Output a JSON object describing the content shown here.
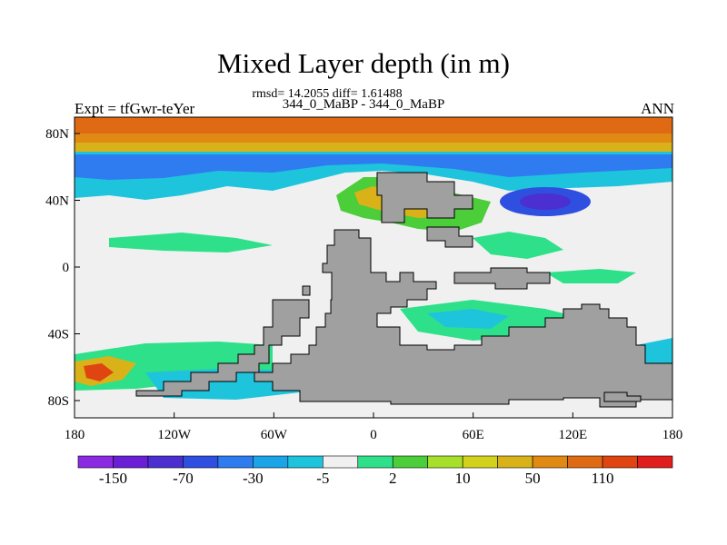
{
  "title": "Mixed Layer depth (in m)",
  "stats_line": "rmsd= 14.2055 diff= 1.61488",
  "case_line": "344_0_MaBP - 344_0_MaBP",
  "experiment_label": "Expt = tfGwr-teYer",
  "season_label": "ANN",
  "axes": {
    "x_ticks": [
      "180",
      "120W",
      "60W",
      "0",
      "60E",
      "120E",
      "180"
    ],
    "y_ticks": [
      "80N",
      "40N",
      "0",
      "40S",
      "80S"
    ]
  },
  "colorbar": {
    "colors": [
      "#8a2be2",
      "#6a1fd6",
      "#4b2fd1",
      "#2f4fe0",
      "#2f7cf0",
      "#1ba4e8",
      "#1ec4dc",
      "#f0f0f0",
      "#2ee08a",
      "#4ccd3a",
      "#a6e02a",
      "#d2d21c",
      "#d9b21a",
      "#e08a14",
      "#e06a14",
      "#e04410",
      "#e01e1e"
    ],
    "labels": [
      "-150",
      "-70",
      "-30",
      "-5",
      "2",
      "10",
      "50",
      "110"
    ]
  },
  "map_colors": {
    "land": "#a0a0a0",
    "neutral": "#f0f0f0",
    "north_band": "#e06a14",
    "orange": "#e08a14",
    "yellow": "#d9b21a",
    "green": "#2ee08a",
    "green2": "#4ccd3a",
    "lime": "#a6e02a",
    "cyan": "#1ec4dc",
    "lightblue": "#2f7cf0",
    "blue": "#2f4fe0",
    "purple": "#4b2fd1",
    "red": "#e04410"
  }
}
